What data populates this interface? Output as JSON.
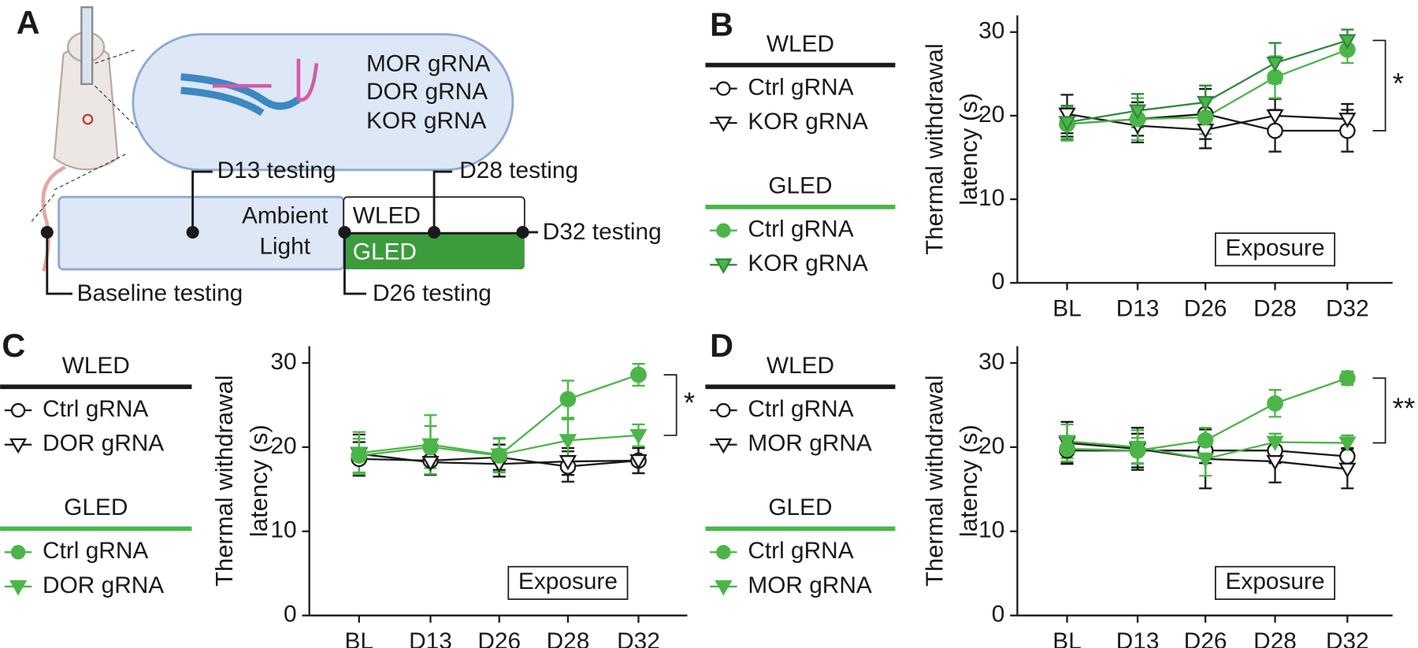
{
  "diagram": {
    "panel_label": "A",
    "guides": [
      "MOR gRNA",
      "DOR gRNA",
      "KOR gRNA"
    ],
    "ambient": [
      "Ambient",
      "Light"
    ],
    "wled": "WLED",
    "gled": "GLED",
    "timepoints": {
      "baseline": "Baseline testing",
      "d13": "D13 testing",
      "d26": "D26 testing",
      "d28": "D28 testing",
      "d32": "D32 testing"
    }
  },
  "chart_data": [
    {
      "type": "line",
      "panel_label": "B",
      "y_label": [
        "Thermal withdrawal",
        "latency (s)"
      ],
      "categories": [
        "BL",
        "D13",
        "D26",
        "D28",
        "D32"
      ],
      "ylim": [
        0,
        32
      ],
      "yticks": [
        0,
        10,
        20,
        30
      ],
      "annotation": "Exposure",
      "significance": "*",
      "series": [
        {
          "group": "WLED",
          "name": "Ctrl gRNA",
          "color": "#1a1a1a",
          "marker": "circle",
          "marker_fill": "#ffffff",
          "values": [
            19.0,
            19.6,
            20.2,
            18.2,
            18.2
          ],
          "errors": [
            1.5,
            2.0,
            3.0,
            2.5,
            2.5
          ]
        },
        {
          "group": "WLED",
          "name": "KOR gRNA",
          "color": "#1a1a1a",
          "marker": "triangle",
          "marker_fill": "#ffffff",
          "values": [
            20.2,
            18.8,
            18.3,
            20.0,
            19.6
          ],
          "errors": [
            2.3,
            2.0,
            2.2,
            2.0,
            1.8
          ]
        },
        {
          "group": "GLED",
          "name": "Ctrl gRNA",
          "color": "#4cb548",
          "marker": "circle",
          "marker_fill": "#4cb548",
          "values": [
            19.0,
            19.6,
            19.8,
            24.6,
            27.9
          ],
          "errors": [
            2.0,
            2.5,
            2.0,
            2.5,
            1.6
          ]
        },
        {
          "group": "GLED",
          "name": "KOR gRNA",
          "color": "#2f8a3c",
          "marker": "triangle",
          "marker_fill": "#4cb548",
          "values": [
            19.2,
            20.6,
            21.6,
            26.3,
            29.0
          ],
          "errors": [
            2.0,
            2.0,
            2.0,
            2.4,
            1.3
          ]
        }
      ]
    },
    {
      "type": "line",
      "panel_label": "C",
      "y_label": [
        "Thermal withdrawal",
        "latency (s)"
      ],
      "categories": [
        "BL",
        "D13",
        "D26",
        "D28",
        "D32"
      ],
      "ylim": [
        0,
        32
      ],
      "yticks": [
        0,
        10,
        20,
        30
      ],
      "annotation": "Exposure",
      "significance": "*",
      "series": [
        {
          "group": "WLED",
          "name": "Ctrl gRNA",
          "color": "#1a1a1a",
          "marker": "circle",
          "marker_fill": "#ffffff",
          "values": [
            18.6,
            18.4,
            18.8,
            17.7,
            18.4
          ],
          "errors": [
            2.0,
            1.6,
            1.5,
            1.8,
            1.5
          ]
        },
        {
          "group": "WLED",
          "name": "DOR gRNA",
          "color": "#1a1a1a",
          "marker": "triangle",
          "marker_fill": "#ffffff",
          "values": [
            19.2,
            18.2,
            18.0,
            18.3,
            18.4
          ],
          "errors": [
            2.3,
            1.5,
            1.5,
            1.6,
            1.5
          ]
        },
        {
          "group": "GLED",
          "name": "Ctrl gRNA",
          "color": "#4cb548",
          "marker": "circle",
          "marker_fill": "#4cb548",
          "values": [
            19.0,
            20.0,
            19.0,
            25.7,
            28.6
          ],
          "errors": [
            2.0,
            2.5,
            2.0,
            2.2,
            1.3
          ]
        },
        {
          "group": "GLED",
          "name": "DOR gRNA",
          "color": "#4cb548",
          "marker": "triangle",
          "marker_fill": "#4cb548",
          "values": [
            19.3,
            20.3,
            19.1,
            20.8,
            21.4
          ],
          "errors": [
            2.5,
            3.5,
            2.0,
            2.5,
            1.3
          ]
        }
      ]
    },
    {
      "type": "line",
      "panel_label": "D",
      "y_label": [
        "Thermal withdrawal",
        "latency (s)"
      ],
      "categories": [
        "BL",
        "D13",
        "D26",
        "D28",
        "D32"
      ],
      "ylim": [
        0,
        32
      ],
      "yticks": [
        0,
        10,
        20,
        30
      ],
      "annotation": "Exposure",
      "significance": "**",
      "series": [
        {
          "group": "WLED",
          "name": "Ctrl gRNA",
          "color": "#1a1a1a",
          "marker": "circle",
          "marker_fill": "#ffffff",
          "values": [
            19.6,
            19.6,
            19.6,
            19.6,
            18.9
          ],
          "errors": [
            1.5,
            2.0,
            1.5,
            1.5,
            1.0
          ]
        },
        {
          "group": "WLED",
          "name": "MOR gRNA",
          "color": "#1a1a1a",
          "marker": "triangle",
          "marker_fill": "#ffffff",
          "values": [
            20.5,
            19.8,
            18.6,
            18.3,
            17.4
          ],
          "errors": [
            2.5,
            2.5,
            3.5,
            2.5,
            2.3
          ]
        },
        {
          "group": "GLED",
          "name": "Ctrl gRNA",
          "color": "#4cb548",
          "marker": "circle",
          "marker_fill": "#4cb548",
          "values": [
            19.8,
            19.6,
            20.8,
            25.2,
            28.2
          ],
          "errors": [
            1.5,
            1.5,
            1.5,
            1.6,
            0.8
          ]
        },
        {
          "group": "GLED",
          "name": "MOR gRNA",
          "color": "#4cb548",
          "marker": "triangle",
          "marker_fill": "#4cb548",
          "values": [
            20.7,
            20.0,
            18.6,
            20.6,
            20.5
          ],
          "errors": [
            2.0,
            2.0,
            2.0,
            1.0,
            0.9
          ]
        }
      ]
    }
  ]
}
